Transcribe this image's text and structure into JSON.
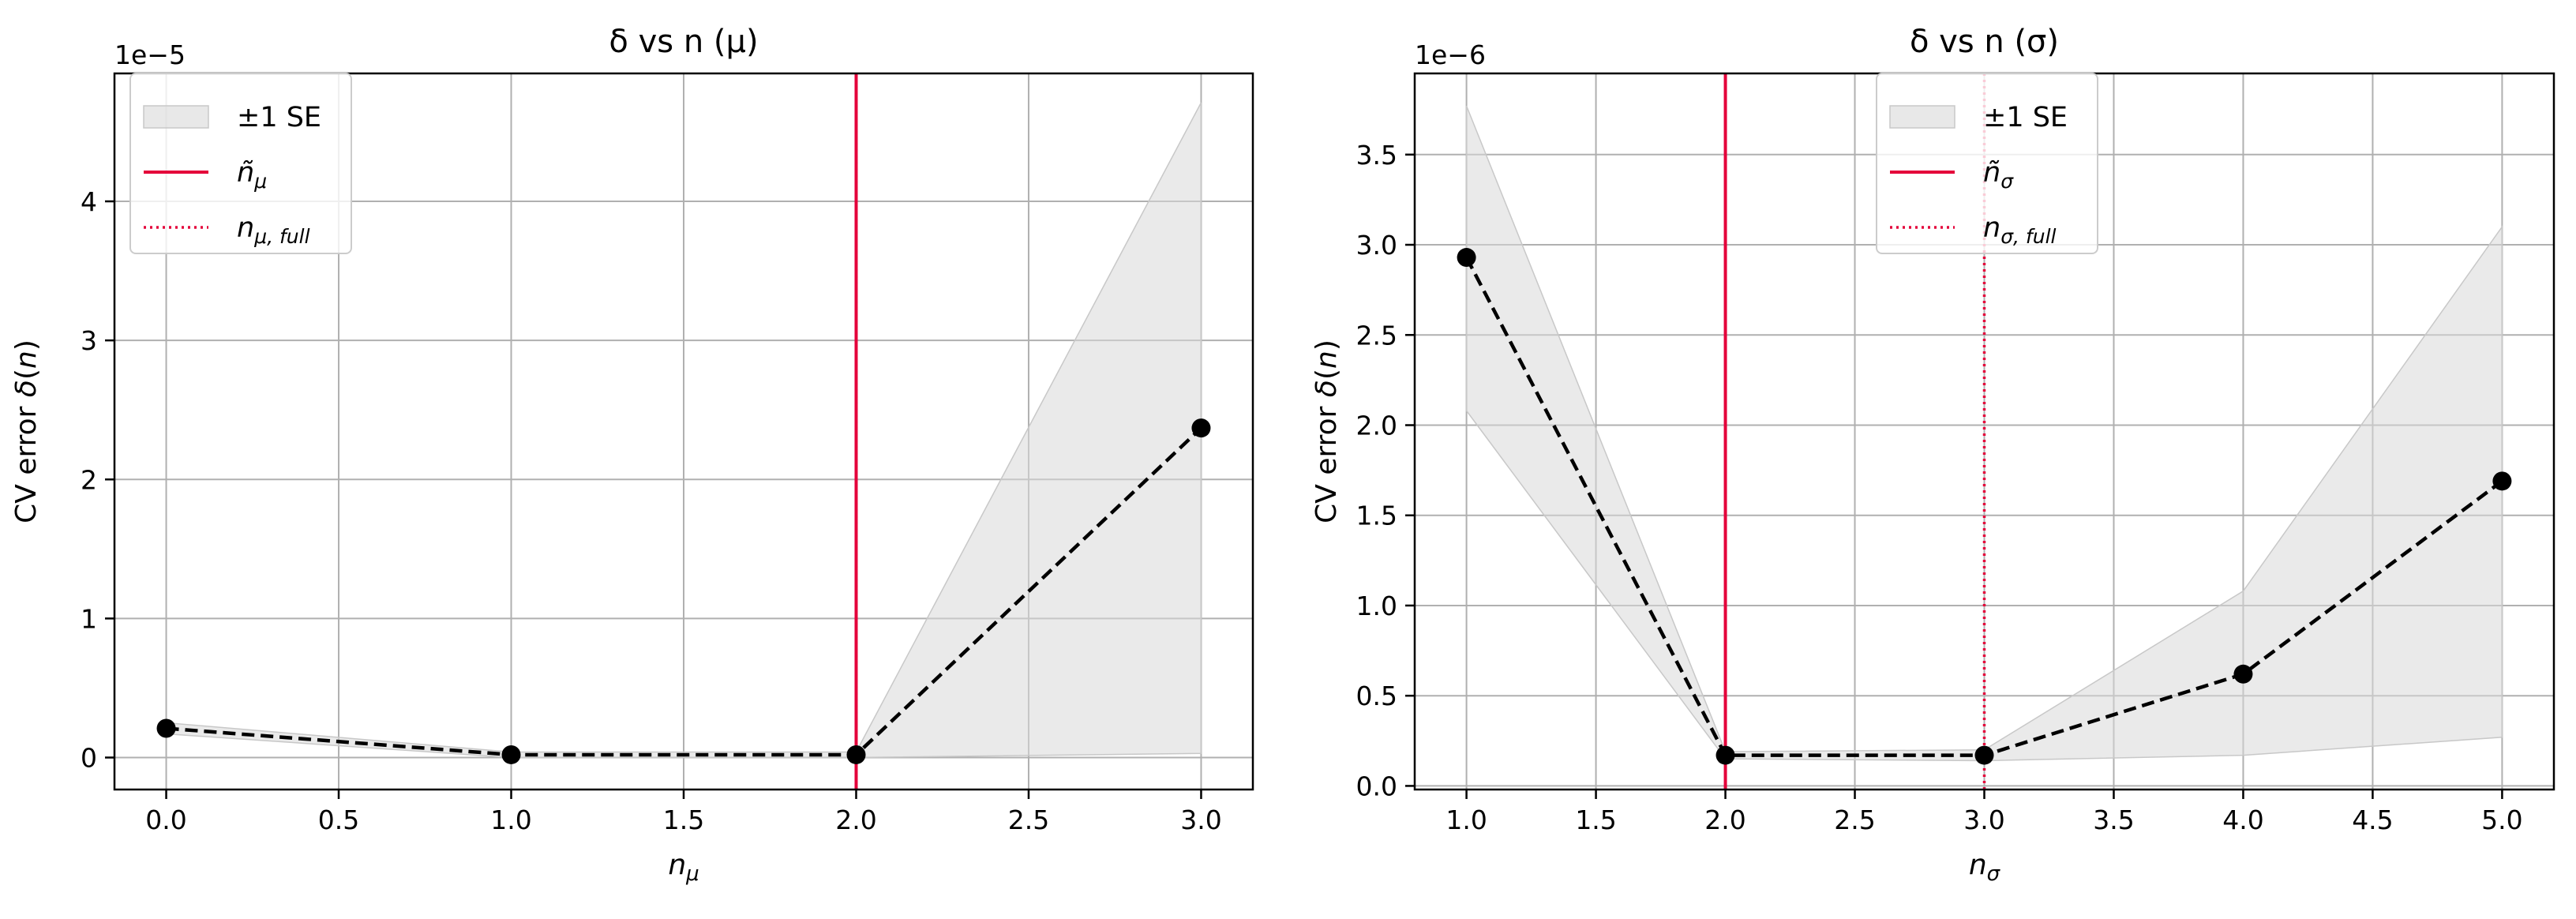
{
  "chart_data": [
    {
      "type": "line",
      "title": "δ vs n (μ)",
      "xlabel": "n_μ",
      "ylabel": "CV error δ(n)",
      "y_offset_label": "1e−5",
      "y_scale_exponent": -5,
      "xlim": [
        -0.15,
        3.15
      ],
      "ylim": [
        -0.23,
        4.92
      ],
      "x_ticks": [
        "0.0",
        "0.5",
        "1.0",
        "1.5",
        "2.0",
        "2.5",
        "3.0"
      ],
      "x_tick_values": [
        0,
        0.5,
        1.0,
        1.5,
        2.0,
        2.5,
        3.0
      ],
      "y_ticks": [
        "0",
        "1",
        "2",
        "3",
        "4"
      ],
      "y_tick_values": [
        0,
        1,
        2,
        3,
        4
      ],
      "grid": true,
      "legend_placement": "top-left",
      "series": [
        {
          "name": "",
          "style": "dashed-with-markers",
          "color": "#000000",
          "x": [
            0,
            1,
            2,
            3
          ],
          "y": [
            0.21,
            0.02,
            0.02,
            2.37
          ]
        }
      ],
      "band": {
        "name": "±1 SE",
        "color": "#d9d9d9",
        "x": [
          0,
          1,
          2,
          3
        ],
        "lower": [
          0.17,
          0.0,
          0.0,
          0.03
        ],
        "upper": [
          0.25,
          0.04,
          0.04,
          4.71
        ]
      },
      "vlines": [
        {
          "name": "ñ_μ",
          "x": 2.0,
          "style": "solid",
          "color": "#e4003a"
        },
        {
          "name": "n_μ,full",
          "x": 2.0,
          "style": "dotted",
          "color": "#e4003a"
        }
      ],
      "legend": [
        {
          "kind": "band",
          "label": "±1 SE"
        },
        {
          "kind": "solid",
          "label": "ñ",
          "sub": "μ"
        },
        {
          "kind": "dotted",
          "label": "n",
          "sub": "μ, full"
        }
      ]
    },
    {
      "type": "line",
      "title": "δ vs n (σ)",
      "xlabel": "n_σ",
      "ylabel": "CV error δ(n)",
      "y_offset_label": "1e−6",
      "y_scale_exponent": -6,
      "xlim": [
        0.8,
        5.2
      ],
      "ylim": [
        -0.02,
        3.95
      ],
      "x_ticks": [
        "1.0",
        "1.5",
        "2.0",
        "2.5",
        "3.0",
        "3.5",
        "4.0",
        "4.5",
        "5.0"
      ],
      "x_tick_values": [
        1.0,
        1.5,
        2.0,
        2.5,
        3.0,
        3.5,
        4.0,
        4.5,
        5.0
      ],
      "y_ticks": [
        "0.0",
        "0.5",
        "1.0",
        "1.5",
        "2.0",
        "2.5",
        "3.0",
        "3.5"
      ],
      "y_tick_values": [
        0,
        0.5,
        1.0,
        1.5,
        2.0,
        2.5,
        3.0,
        3.5
      ],
      "grid": true,
      "legend_placement": "top-center",
      "series": [
        {
          "name": "",
          "style": "dashed-with-markers",
          "color": "#000000",
          "x": [
            1,
            2,
            3,
            4,
            5
          ],
          "y": [
            2.93,
            0.17,
            0.17,
            0.62,
            1.69
          ]
        }
      ],
      "band": {
        "name": "±1 SE",
        "color": "#d9d9d9",
        "x": [
          1,
          2,
          3,
          4,
          5
        ],
        "lower": [
          2.08,
          0.15,
          0.14,
          0.17,
          0.27
        ],
        "upper": [
          3.77,
          0.19,
          0.2,
          1.08,
          3.1
        ]
      },
      "vlines": [
        {
          "name": "ñ_σ",
          "x": 2.0,
          "style": "solid",
          "color": "#e4003a"
        },
        {
          "name": "n_σ,full",
          "x": 3.0,
          "style": "dotted",
          "color": "#e4003a"
        }
      ],
      "legend": [
        {
          "kind": "band",
          "label": "±1 SE"
        },
        {
          "kind": "solid",
          "label": "ñ",
          "sub": "σ"
        },
        {
          "kind": "dotted",
          "label": "n",
          "sub": "σ, full"
        }
      ]
    }
  ]
}
